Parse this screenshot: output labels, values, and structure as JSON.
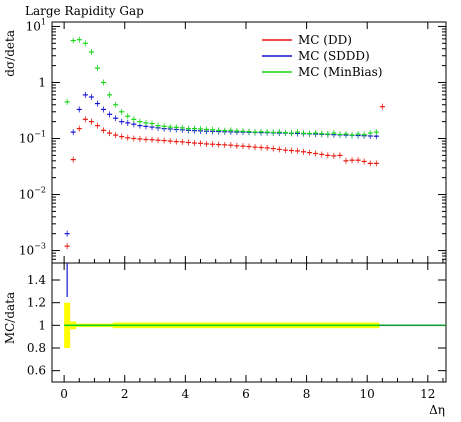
{
  "chart_data": {
    "type": "scatter",
    "title": "Large Rapidity Gap",
    "top_panel": {
      "ylabel": "dσ/deta",
      "yscale": "log",
      "ylim": [
        0.0006,
        12
      ],
      "yticks": [
        {
          "value": 0.001,
          "base": "10",
          "exp": "−3"
        },
        {
          "value": 0.01,
          "base": "10",
          "exp": "−2"
        },
        {
          "value": 0.1,
          "base": "10",
          "exp": "−1"
        },
        {
          "value": 1,
          "base": "1",
          "exp": ""
        },
        {
          "value": 10,
          "base": "10",
          "exp": "1"
        }
      ]
    },
    "ratio_panel": {
      "ylabel": "MC/data",
      "ylim": [
        0.5,
        1.55
      ],
      "yticks": [
        "0.6",
        "0.8",
        "1",
        "1.2",
        "1.4"
      ],
      "band_color": "#ffff00"
    },
    "xlabel": "Δη",
    "xlim": [
      -0.4,
      12.6
    ],
    "xticks": [
      "0",
      "2",
      "4",
      "6",
      "8",
      "10",
      "12"
    ],
    "legend": {
      "placement": "top-right"
    },
    "series": [
      {
        "name": "MC (DD)",
        "color": "#e8190f",
        "x": [
          0.1,
          0.3,
          0.5,
          0.7,
          0.9,
          1.1,
          1.3,
          1.5,
          1.7,
          1.9,
          2.1,
          2.3,
          2.5,
          2.7,
          2.9,
          3.1,
          3.3,
          3.5,
          3.7,
          3.9,
          4.1,
          4.3,
          4.5,
          4.7,
          4.9,
          5.1,
          5.3,
          5.5,
          5.7,
          5.9,
          6.1,
          6.3,
          6.5,
          6.7,
          6.9,
          7.1,
          7.3,
          7.5,
          7.7,
          7.9,
          8.1,
          8.3,
          8.5,
          8.7,
          8.9,
          9.1,
          9.3,
          9.5,
          9.7,
          9.9,
          10.1,
          10.3,
          10.5
        ],
        "y": [
          0.0012,
          0.042,
          0.15,
          0.22,
          0.2,
          0.17,
          0.14,
          0.125,
          0.115,
          0.108,
          0.103,
          0.1,
          0.098,
          0.096,
          0.095,
          0.093,
          0.092,
          0.09,
          0.088,
          0.087,
          0.085,
          0.083,
          0.082,
          0.08,
          0.079,
          0.078,
          0.077,
          0.076,
          0.074,
          0.073,
          0.072,
          0.07,
          0.069,
          0.068,
          0.066,
          0.064,
          0.062,
          0.061,
          0.06,
          0.058,
          0.056,
          0.054,
          0.052,
          0.05,
          0.049,
          0.05,
          0.04,
          0.041,
          0.041,
          0.039,
          0.036,
          0.036,
          0.37
        ]
      },
      {
        "name": "MC (SDDD)",
        "color": "#1414d6",
        "x": [
          0.1,
          0.3,
          0.5,
          0.7,
          0.9,
          1.1,
          1.3,
          1.5,
          1.7,
          1.9,
          2.1,
          2.3,
          2.5,
          2.7,
          2.9,
          3.1,
          3.3,
          3.5,
          3.7,
          3.9,
          4.1,
          4.3,
          4.5,
          4.7,
          4.9,
          5.1,
          5.3,
          5.5,
          5.7,
          5.9,
          6.1,
          6.3,
          6.5,
          6.7,
          6.9,
          7.1,
          7.3,
          7.5,
          7.7,
          7.9,
          8.1,
          8.3,
          8.5,
          8.7,
          8.9,
          9.1,
          9.3,
          9.5,
          9.7,
          9.9,
          10.1,
          10.3
        ],
        "y": [
          0.002,
          0.13,
          0.33,
          0.6,
          0.55,
          0.42,
          0.33,
          0.27,
          0.23,
          0.2,
          0.19,
          0.18,
          0.17,
          0.165,
          0.16,
          0.155,
          0.15,
          0.148,
          0.145,
          0.143,
          0.14,
          0.138,
          0.137,
          0.135,
          0.134,
          0.133,
          0.132,
          0.131,
          0.13,
          0.13,
          0.129,
          0.128,
          0.127,
          0.127,
          0.126,
          0.125,
          0.125,
          0.124,
          0.123,
          0.122,
          0.121,
          0.12,
          0.119,
          0.118,
          0.117,
          0.116,
          0.115,
          0.114,
          0.113,
          0.112,
          0.111,
          0.11
        ]
      },
      {
        "name": "MC (MinBias)",
        "color": "#14d614",
        "x": [
          0.1,
          0.3,
          0.5,
          0.7,
          0.9,
          1.1,
          1.3,
          1.5,
          1.7,
          1.9,
          2.1,
          2.3,
          2.5,
          2.7,
          2.9,
          3.1,
          3.3,
          3.5,
          3.7,
          3.9,
          4.1,
          4.3,
          4.5,
          4.7,
          4.9,
          5.1,
          5.3,
          5.5,
          5.7,
          5.9,
          6.1,
          6.3,
          6.5,
          6.7,
          6.9,
          7.1,
          7.3,
          7.5,
          7.7,
          7.9,
          8.1,
          8.3,
          8.5,
          8.7,
          8.9,
          9.1,
          9.3,
          9.5,
          9.7,
          9.9,
          10.1,
          10.3
        ],
        "y": [
          0.45,
          5.6,
          5.8,
          5.0,
          3.5,
          1.8,
          1.0,
          0.6,
          0.4,
          0.3,
          0.25,
          0.22,
          0.2,
          0.19,
          0.185,
          0.17,
          0.165,
          0.16,
          0.158,
          0.155,
          0.15,
          0.15,
          0.148,
          0.145,
          0.143,
          0.14,
          0.138,
          0.14,
          0.136,
          0.135,
          0.133,
          0.13,
          0.132,
          0.13,
          0.128,
          0.13,
          0.127,
          0.125,
          0.13,
          0.124,
          0.123,
          0.125,
          0.122,
          0.12,
          0.125,
          0.118,
          0.12,
          0.115,
          0.12,
          0.117,
          0.125,
          0.13
        ]
      }
    ]
  }
}
